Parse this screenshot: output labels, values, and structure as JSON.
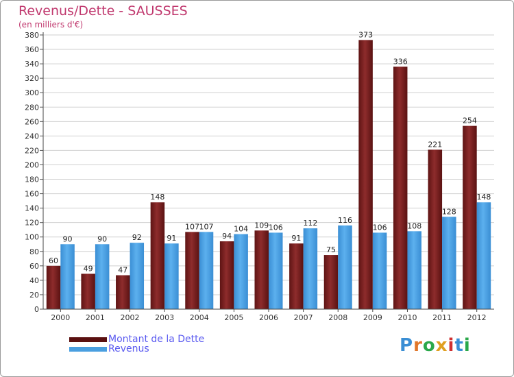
{
  "page": {
    "title": "Revenus/Dette - SAUSSES",
    "subtitle": "(en milliers d'€)",
    "brand": "Proxiti"
  },
  "colors": {
    "debt": "#7a2020",
    "revenue": "#4a9fe0",
    "title": "#c0386e",
    "legend_text": "#5a5af0",
    "grid": "#cccccc"
  },
  "chart_data": {
    "type": "bar",
    "title": "Revenus/Dette - SAUSSES",
    "ylabel": "(en milliers d'€)",
    "xlabel": "",
    "categories": [
      "2000",
      "2001",
      "2002",
      "2003",
      "2004",
      "2005",
      "2006",
      "2007",
      "2008",
      "2009",
      "2010",
      "2011",
      "2012"
    ],
    "series": [
      {
        "name": "Montant de la Dette",
        "values": [
          60,
          49,
          47,
          148,
          107,
          94,
          109,
          91,
          75,
          373,
          336,
          221,
          254
        ]
      },
      {
        "name": "Revenus",
        "values": [
          90,
          90,
          92,
          91,
          107,
          104,
          106,
          112,
          116,
          106,
          108,
          128,
          148
        ]
      }
    ],
    "ylim": [
      0,
      380
    ],
    "ytick_step": 20,
    "grid": true,
    "legend": "bottom-left"
  }
}
